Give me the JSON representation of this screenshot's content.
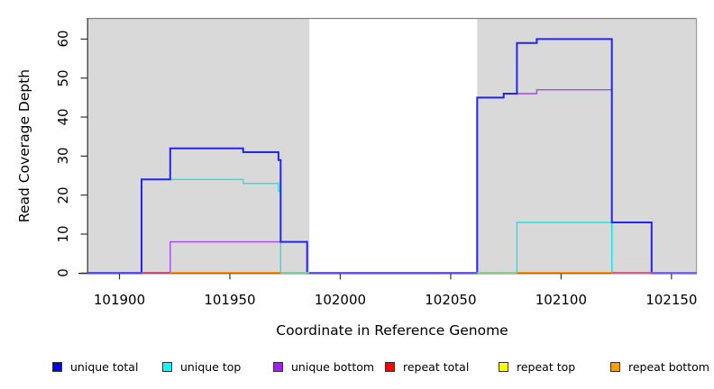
{
  "chart_data": {
    "type": "line",
    "step": true,
    "title": "",
    "xlabel": "Coordinate in Reference Genome",
    "ylabel": "Read Coverage Depth",
    "xlim": [
      101885.5,
      102161.5
    ],
    "ylim": [
      0,
      65.4
    ],
    "x_ticks": [
      101900,
      101950,
      102000,
      102050,
      102100,
      102150
    ],
    "y_ticks": [
      0,
      10,
      20,
      30,
      40,
      50,
      60
    ],
    "grid": false,
    "legend_position": "bottom",
    "shaded_regions": [
      {
        "x0": 101885.5,
        "x1": 101986,
        "color": "#d9d9d9",
        "meaning": "repeat region"
      },
      {
        "x0": 102062,
        "x1": 102161,
        "color": "#d9d9d9",
        "meaning": "repeat region"
      }
    ],
    "series": [
      {
        "name": "unique bottom",
        "color": "#a749e8",
        "line_width": 1.4,
        "points": [
          [
            101885.5,
            0
          ],
          [
            101923,
            8
          ],
          [
            101985,
            0
          ],
          [
            102062,
            45
          ],
          [
            102074,
            46
          ],
          [
            102089,
            47
          ],
          [
            102123,
            0
          ],
          [
            102161.5,
            0
          ]
        ]
      },
      {
        "name": "unique top",
        "color": "#19e6e6",
        "line_width": 1.4,
        "points": [
          [
            101885.5,
            0
          ],
          [
            101910,
            24
          ],
          [
            101956,
            23
          ],
          [
            101972,
            21
          ],
          [
            101973,
            0
          ],
          [
            102080,
            13
          ],
          [
            102123,
            0
          ],
          [
            102161.5,
            0
          ]
        ]
      },
      {
        "name": "unique total",
        "color": "#2424ee",
        "line_width": 2,
        "points": [
          [
            101885.5,
            0
          ],
          [
            101910,
            24
          ],
          [
            101923,
            32
          ],
          [
            101956,
            31
          ],
          [
            101972,
            29
          ],
          [
            101973,
            8
          ],
          [
            101985,
            0
          ],
          [
            102062,
            45
          ],
          [
            102074,
            46
          ],
          [
            102080,
            59
          ],
          [
            102089,
            60
          ],
          [
            102123,
            13
          ],
          [
            102141,
            0
          ],
          [
            102161.5,
            0
          ]
        ]
      },
      {
        "name": "repeat total",
        "color": "#ff0000",
        "line_width": 1.4,
        "points": [
          [
            101885.5,
            0
          ],
          [
            102161.5,
            0
          ]
        ]
      },
      {
        "name": "repeat top",
        "color": "#ffff00",
        "line_width": 1.4,
        "points": [
          [
            101885.5,
            0
          ],
          [
            102161.5,
            0
          ]
        ]
      },
      {
        "name": "repeat bottom",
        "color": "#ff9100",
        "line_width": 1.4,
        "points": [
          [
            101885.5,
            0
          ],
          [
            102161.5,
            0
          ]
        ]
      }
    ],
    "zero_line_overplot_segments": [
      {
        "x0": 101885.5,
        "x1": 101910,
        "color": "#5b54e3"
      },
      {
        "x0": 101910,
        "x1": 101923,
        "color": "#cd4b72"
      },
      {
        "x0": 101923,
        "x1": 101973,
        "color": "#ff9100"
      },
      {
        "x0": 101973,
        "x1": 101986,
        "color": "#7fcf9f"
      },
      {
        "x0": 101986,
        "x1": 102062,
        "color": "#6a5ae8"
      },
      {
        "x0": 102062,
        "x1": 102080,
        "color": "#8ccc8c"
      },
      {
        "x0": 102080,
        "x1": 102123,
        "color": "#ff9100"
      },
      {
        "x0": 102123,
        "x1": 102141,
        "color": "#d45a86"
      },
      {
        "x0": 102141,
        "x1": 102161.5,
        "color": "#7b6cee"
      }
    ],
    "legend": [
      {
        "label": "unique total",
        "color": "#0000ee"
      },
      {
        "label": "unique top",
        "color": "#00ffff"
      },
      {
        "label": "unique bottom",
        "color": "#a020f0"
      },
      {
        "label": "repeat total",
        "color": "#ff0000"
      },
      {
        "label": "repeat top",
        "color": "#ffff00"
      },
      {
        "label": "repeat bottom",
        "color": "#ff9d00"
      }
    ]
  }
}
